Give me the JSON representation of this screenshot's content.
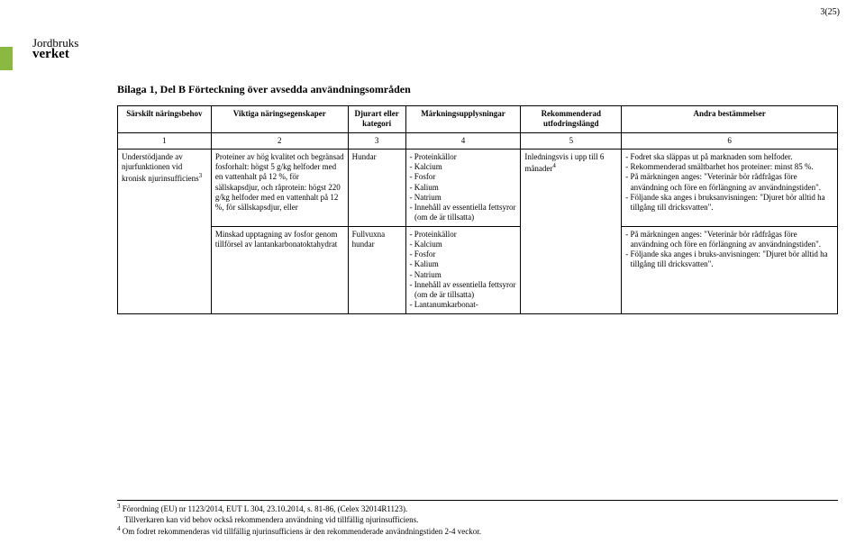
{
  "page_number": "3(25)",
  "accent_color": "#8bb843",
  "logo": {
    "top": "Jordbruks",
    "bottom": "verket"
  },
  "title": "Bilaga 1, Del B Förteckning över avsedda användningsområden",
  "columns": {
    "c1": "Särskilt näringsbehov",
    "c2": "Viktiga näringsegenskaper",
    "c3": "Djurart eller kategori",
    "c4": "Märkningsupplysningar",
    "c5": "Rekommenderad utfodringslängd",
    "c6": "Andra bestämmelser"
  },
  "numrow": {
    "n1": "1",
    "n2": "2",
    "n3": "3",
    "n4": "4",
    "n5": "5",
    "n6": "6"
  },
  "row1": {
    "c1": "Understödjande av njurfunktionen vid kronisk njurinsufficiens",
    "c1_sup": "3",
    "c2": "Proteiner av hög kvalitet och begränsad fosforhalt: högst 5 g/kg helfoder med en vattenhalt på 12 %, för sällskapsdjur, och råprotein: högst 220 g/kg helfoder med en vattenhalt på 12 %, för sällskapsdjur, eller",
    "c3": "Hundar",
    "c4_items": [
      "- Proteinkällor",
      "- Kalcium",
      "- Fosfor",
      "- Kalium",
      "- Natrium",
      "- Innehåll av essentiella fettsyror (om de är tillsatta)"
    ],
    "c5_text": "Inledningsvis i upp till 6 månader",
    "c5_sup": "4",
    "c6_items": [
      "- Fodret ska släppas ut på marknaden som helfoder.",
      "- Rekommenderad smältbarhet hos proteiner: minst 85 %.",
      "- På märkningen anges: \"Veterinär bör rådfrågas före användning och före en förlängning av användningstiden\".",
      "- Följande ska anges i bruksanvisningen: \"Djuret bör alltid ha tillgång till dricksvatten\"."
    ]
  },
  "row2": {
    "c2": "Minskad upptagning av fosfor genom tillförsel av lantankarbonatoktahydrat",
    "c3": "Fullvuxna hundar",
    "c4_items": [
      "- Proteinkällor",
      "- Kalcium",
      "- Fosfor",
      "- Kalium",
      "- Natrium",
      "- Innehåll av essentiella fettsyror (om de är tillsatta)",
      "- Lantanumkarbonat-"
    ],
    "c6_items": [
      "- På märkningen anges: \"Veterinär bör rådfrågas före användning och före en förlängning av användningstiden\".",
      "- Följande ska anges i bruks-anvisningen: \"Djuret bör alltid ha tillgång till dricksvatten\"."
    ]
  },
  "footnotes": {
    "f3a": "Förordning (EU) nr 1123/2014, EUT L 304, 23.10.2014, s. 81-86, (Celex 32014R1123).",
    "f3b": "Tillverkaren kan vid behov också rekommendera användning vid tillfällig njurinsufficiens.",
    "f4": "Om fodret rekommenderas vid tillfällig njurinsufficiens är den rekommenderade användningstiden 2-4 veckor."
  },
  "col_widths": [
    "13%",
    "19%",
    "8%",
    "16%",
    "14%",
    "30%"
  ]
}
